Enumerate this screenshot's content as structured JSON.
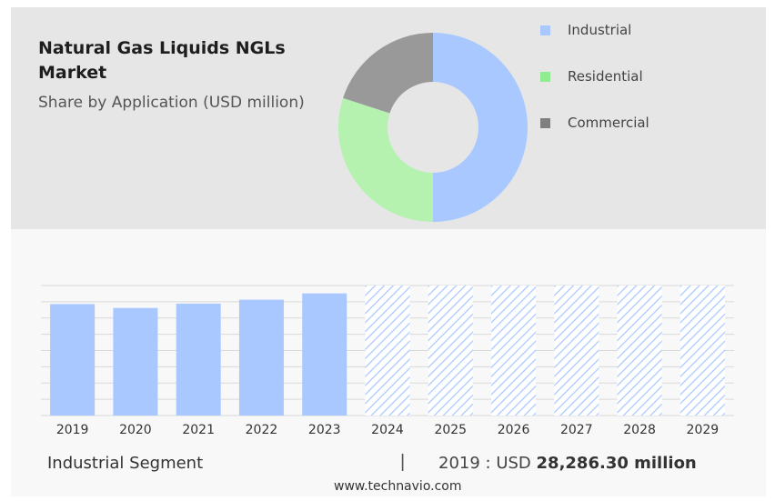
{
  "header": {
    "title": "Natural Gas Liquids NGLs Market",
    "subtitle": "Share by Application (USD million)"
  },
  "legend": [
    {
      "label": "Industrial",
      "color": "#a8c8ff"
    },
    {
      "label": "Residential",
      "color": "#90ec90"
    },
    {
      "label": "Commercial",
      "color": "#808080"
    }
  ],
  "footer": {
    "segment": "Industrial Segment",
    "separator": "|",
    "year_label": "2019 : USD",
    "value": "28,286.30 million",
    "source": "www.technavio.com"
  },
  "chart_data": [
    {
      "type": "pie",
      "categories": [
        "Industrial",
        "Residential",
        "Commercial"
      ],
      "values": [
        50,
        30,
        20
      ],
      "colors": [
        "#a8c8ff",
        "#b5f2b0",
        "#999999"
      ],
      "donut": true
    },
    {
      "type": "bar",
      "categories": [
        "2019",
        "2020",
        "2021",
        "2022",
        "2023",
        "2024",
        "2025",
        "2026",
        "2027",
        "2028",
        "2029"
      ],
      "values": [
        28286.3,
        27300,
        28400,
        29400,
        31000,
        null,
        null,
        null,
        null,
        null,
        null
      ],
      "forecast_from": "2024",
      "ylim": [
        0,
        33000
      ],
      "grid": true,
      "color": "#a8c8ff"
    }
  ]
}
